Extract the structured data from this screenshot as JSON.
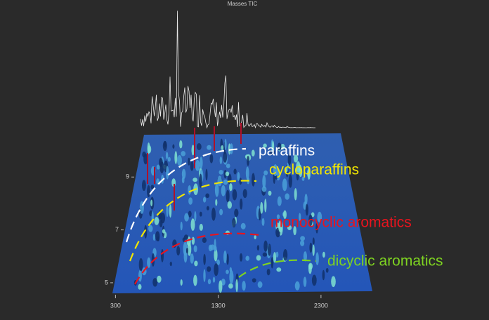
{
  "chart_data": {
    "type": "surface3d",
    "title": "Masses TIC",
    "xlim": [
      270,
      2800
    ],
    "xticks": [
      300,
      1300,
      2300
    ],
    "ylim": [
      4.6,
      10.6
    ],
    "yticks": [
      5,
      7,
      9
    ],
    "annotations": [
      {
        "text": "paraffins",
        "color": "#ffffff"
      },
      {
        "text": "cycloparaffins",
        "color": "#f2e600"
      },
      {
        "text": "monocyclic aromatics",
        "color": "#e8141e"
      },
      {
        "text": "dicyclic aromatics",
        "color": "#7ed321"
      }
    ]
  }
}
